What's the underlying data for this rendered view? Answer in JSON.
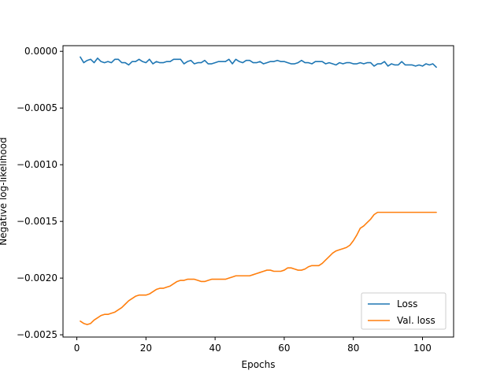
{
  "chart_data": {
    "type": "line",
    "title": "",
    "xlabel": "Epochs",
    "ylabel": "Negative log-likelihood",
    "xlim": [
      -4,
      109
    ],
    "ylim": [
      -0.00252,
      5e-05
    ],
    "xticks": [
      0,
      20,
      40,
      60,
      80,
      100
    ],
    "xtick_labels": [
      "0",
      "20",
      "40",
      "60",
      "80",
      "100"
    ],
    "yticks": [
      0.0,
      -0.0005,
      -0.001,
      -0.0015,
      -0.002,
      -0.0025
    ],
    "ytick_labels": [
      "0.0000",
      "−0.0005",
      "−0.0010",
      "−0.0015",
      "−0.0020",
      "−0.0025"
    ],
    "grid": false,
    "legend_position": "lower-right",
    "series": [
      {
        "name": "Loss",
        "color": "#1f77b4",
        "x": [
          1,
          2,
          3,
          4,
          5,
          6,
          7,
          8,
          9,
          10,
          11,
          12,
          13,
          14,
          15,
          16,
          17,
          18,
          19,
          20,
          21,
          22,
          23,
          24,
          25,
          26,
          27,
          28,
          29,
          30,
          31,
          32,
          33,
          34,
          35,
          36,
          37,
          38,
          39,
          40,
          41,
          42,
          43,
          44,
          45,
          46,
          47,
          48,
          49,
          50,
          51,
          52,
          53,
          54,
          55,
          56,
          57,
          58,
          59,
          60,
          61,
          62,
          63,
          64,
          65,
          66,
          67,
          68,
          69,
          70,
          71,
          72,
          73,
          74,
          75,
          76,
          77,
          78,
          79,
          80,
          81,
          82,
          83,
          84,
          85,
          86,
          87,
          88,
          89,
          90,
          91,
          92,
          93,
          94,
          95,
          96,
          97,
          98,
          99,
          100,
          101,
          102,
          103,
          104
        ],
        "y": [
          -5e-05,
          -0.0001,
          -8e-05,
          -7e-05,
          -0.0001,
          -6e-05,
          -9e-05,
          -0.0001,
          -9e-05,
          -0.0001,
          -7e-05,
          -7e-05,
          -0.0001,
          -0.0001,
          -0.00012,
          -9e-05,
          -9e-05,
          -7e-05,
          -9e-05,
          -0.0001,
          -7e-05,
          -0.00011,
          -9e-05,
          -0.0001,
          -0.0001,
          -9e-05,
          -9e-05,
          -7e-05,
          -7e-05,
          -7e-05,
          -0.00011,
          -9e-05,
          -8e-05,
          -0.00011,
          -0.0001,
          -0.0001,
          -8e-05,
          -0.00011,
          -0.00011,
          -0.0001,
          -9e-05,
          -9e-05,
          -9e-05,
          -7e-05,
          -0.00011,
          -7e-05,
          -9e-05,
          -0.0001,
          -8e-05,
          -8e-05,
          -0.0001,
          -0.0001,
          -9e-05,
          -0.00011,
          -0.0001,
          -9e-05,
          -9e-05,
          -8e-05,
          -9e-05,
          -9e-05,
          -0.0001,
          -0.00011,
          -0.00011,
          -0.0001,
          -8e-05,
          -0.0001,
          -0.0001,
          -0.00011,
          -9e-05,
          -9e-05,
          -9e-05,
          -0.00011,
          -0.0001,
          -0.00011,
          -0.00012,
          -0.0001,
          -0.00011,
          -0.0001,
          -0.0001,
          -0.00011,
          -0.00011,
          -0.0001,
          -0.00011,
          -0.0001,
          -0.0001,
          -0.00013,
          -0.00011,
          -0.00011,
          -9e-05,
          -0.00013,
          -0.00011,
          -0.00012,
          -0.00012,
          -9e-05,
          -0.00012,
          -0.00012,
          -0.00012,
          -0.00013,
          -0.00012,
          -0.00013,
          -0.00011,
          -0.00012,
          -0.00011,
          -0.00014
        ]
      },
      {
        "name": "Val. loss",
        "color": "#ff7f0e",
        "x": [
          1,
          2,
          3,
          4,
          5,
          6,
          7,
          8,
          9,
          10,
          11,
          12,
          13,
          14,
          15,
          16,
          17,
          18,
          19,
          20,
          21,
          22,
          23,
          24,
          25,
          26,
          27,
          28,
          29,
          30,
          31,
          32,
          33,
          34,
          35,
          36,
          37,
          38,
          39,
          40,
          41,
          42,
          43,
          44,
          45,
          46,
          47,
          48,
          49,
          50,
          51,
          52,
          53,
          54,
          55,
          56,
          57,
          58,
          59,
          60,
          61,
          62,
          63,
          64,
          65,
          66,
          67,
          68,
          69,
          70,
          71,
          72,
          73,
          74,
          75,
          76,
          77,
          78,
          79,
          80,
          81,
          82,
          83,
          84,
          85,
          86,
          87,
          88,
          89,
          90,
          91,
          92,
          93,
          94,
          95,
          96,
          97,
          98,
          99,
          100,
          101,
          102,
          103,
          104
        ],
        "y": [
          -0.00238,
          -0.0024,
          -0.00241,
          -0.0024,
          -0.00237,
          -0.00235,
          -0.00233,
          -0.00232,
          -0.00232,
          -0.00231,
          -0.0023,
          -0.00228,
          -0.00226,
          -0.00223,
          -0.0022,
          -0.00218,
          -0.00216,
          -0.00215,
          -0.00215,
          -0.00215,
          -0.00214,
          -0.00212,
          -0.0021,
          -0.00209,
          -0.00209,
          -0.00208,
          -0.00207,
          -0.00205,
          -0.00203,
          -0.00202,
          -0.00202,
          -0.00201,
          -0.00201,
          -0.00201,
          -0.00202,
          -0.00203,
          -0.00203,
          -0.00202,
          -0.00201,
          -0.00201,
          -0.00201,
          -0.00201,
          -0.00201,
          -0.002,
          -0.00199,
          -0.00198,
          -0.00198,
          -0.00198,
          -0.00198,
          -0.00198,
          -0.00197,
          -0.00196,
          -0.00195,
          -0.00194,
          -0.00193,
          -0.00193,
          -0.00194,
          -0.00194,
          -0.00194,
          -0.00193,
          -0.00191,
          -0.00191,
          -0.00192,
          -0.00193,
          -0.00193,
          -0.00192,
          -0.0019,
          -0.00189,
          -0.00189,
          -0.00189,
          -0.00187,
          -0.00184,
          -0.00181,
          -0.00178,
          -0.00176,
          -0.00175,
          -0.00174,
          -0.00173,
          -0.00171,
          -0.00167,
          -0.00162,
          -0.00156,
          -0.00154,
          -0.00151,
          -0.00148,
          -0.00144,
          -0.00142,
          -0.00142,
          -0.00142,
          -0.00142,
          -0.00142,
          -0.00142,
          -0.00142,
          -0.00142,
          -0.00142,
          -0.00142,
          -0.00142,
          -0.00142,
          -0.00142,
          -0.00142,
          -0.00142,
          -0.00142,
          -0.00142,
          -0.00142
        ]
      }
    ]
  }
}
